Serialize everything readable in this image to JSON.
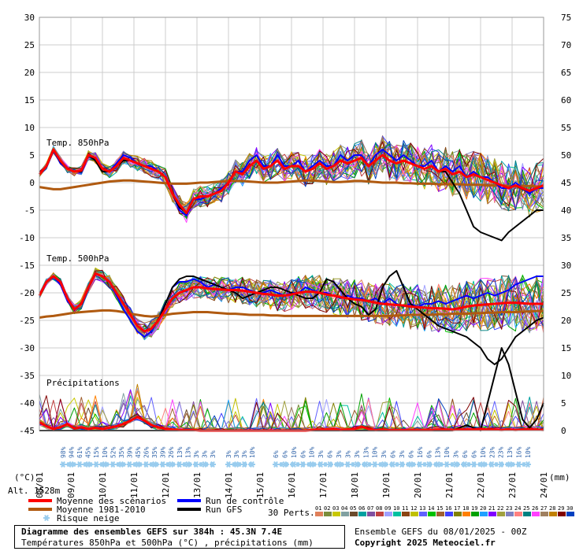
{
  "chart_data": {
    "type": "line",
    "left_axis_ticks": [
      30,
      25,
      20,
      15,
      10,
      5,
      0,
      -5,
      -10,
      -15,
      -20,
      -25,
      -30,
      -35,
      -40,
      -45
    ],
    "right_axis_ticks": [
      75,
      70,
      65,
      60,
      55,
      50,
      45,
      40,
      35,
      30,
      25,
      20,
      15,
      10,
      5,
      0
    ],
    "left_unit": "(°C)",
    "right_unit": "(mm)",
    "x_ticks": [
      "08/01",
      "09/01",
      "10/01",
      "11/01",
      "12/01",
      "13/01",
      "14/01",
      "15/01",
      "16/01",
      "17/01",
      "18/01",
      "19/01",
      "20/01",
      "21/01",
      "22/01",
      "23/01",
      "24/01"
    ],
    "panel_labels": {
      "t850": "Temp. 850hPa",
      "t500": "Temp. 500hPa",
      "precip": "Précipitations"
    },
    "x_step_hours": 6,
    "series": [
      {
        "name": "Moyenne des scénarios",
        "color": "#ff0000",
        "panel": "t850",
        "values": [
          1.5,
          3,
          6,
          4,
          2.5,
          2,
          2.2,
          5,
          4.5,
          2.5,
          2,
          3,
          4.5,
          4,
          3.5,
          3,
          2.5,
          2,
          1,
          -2,
          -4,
          -5.5,
          -3,
          -2.5,
          -2.5,
          -2,
          -1.5,
          0,
          2,
          1.5,
          3,
          4,
          2.5,
          3,
          4,
          2.5,
          3,
          3,
          2,
          2.5,
          3.5,
          2.5,
          3,
          4,
          3.5,
          4,
          4.5,
          3,
          4,
          5,
          4,
          3.5,
          4,
          3.5,
          3,
          2.5,
          3,
          2,
          2.5,
          1.5,
          2,
          1,
          1.5,
          1,
          0.5,
          0,
          -0.5,
          -1,
          -0.5,
          -1,
          -1.5,
          -1,
          -0.5
        ]
      },
      {
        "name": "Moyenne 1981-2010",
        "color": "#b05a10",
        "panel": "t850",
        "values": [
          -0.8,
          -1,
          -1.2,
          -1.2,
          -1,
          -0.8,
          -0.6,
          -0.4,
          -0.2,
          0,
          0.2,
          0.3,
          0.4,
          0.4,
          0.3,
          0.2,
          0.1,
          0,
          -0.1,
          -0.2,
          -0.2,
          -0.2,
          -0.1,
          0,
          0,
          0.1,
          0.2,
          0.3,
          0.3,
          0.3,
          0.2,
          0.1,
          0,
          0,
          0,
          0.1,
          0.2,
          0.3,
          0.4,
          0.4,
          0.3,
          0.2,
          0.1,
          0.1,
          0.2,
          0.3,
          0.3,
          0.2,
          0.1,
          0,
          0,
          0,
          -0.1,
          -0.1,
          -0.2,
          -0.2,
          -0.2,
          -0.3,
          -0.3,
          -0.3,
          -0.3,
          -0.4,
          -0.4,
          -0.4,
          -0.5,
          -0.5,
          -0.5,
          -0.6,
          -0.6,
          -0.6,
          -0.6,
          -0.7,
          -0.7
        ]
      },
      {
        "name": "Run de contrôle",
        "color": "#0000ff",
        "panel": "t850",
        "values": [
          1.5,
          3,
          6,
          3.5,
          2.5,
          2,
          2,
          5,
          4,
          2,
          2,
          3.5,
          5,
          4.5,
          3.5,
          3,
          3,
          2,
          1,
          -2,
          -5,
          -6,
          -3,
          -3,
          -2.5,
          -2,
          -1,
          0,
          2,
          2,
          4,
          5,
          3,
          3,
          5,
          3,
          3,
          4,
          2,
          3,
          4,
          3,
          3,
          5,
          4,
          5,
          5,
          3,
          5,
          6,
          5,
          4,
          5,
          4,
          3,
          3,
          4,
          2,
          3,
          2,
          3,
          1,
          2,
          1,
          1,
          0,
          -1,
          -1,
          0,
          -1,
          -2,
          -1,
          -1
        ]
      },
      {
        "name": "Run GFS",
        "color": "#000000",
        "panel": "t850",
        "values": [
          1.5,
          3,
          6,
          3.8,
          2.5,
          2,
          2,
          5,
          4,
          2,
          2,
          3,
          4,
          4,
          3.5,
          3,
          2.5,
          2,
          1,
          -2,
          -4.5,
          -5.5,
          -3,
          -2.5,
          -2.5,
          -2,
          -1.5,
          0,
          2,
          1.5,
          3,
          4,
          2.5,
          3,
          4,
          2.5,
          3,
          3,
          2,
          2.5,
          3.5,
          2.5,
          3,
          4,
          3.5,
          4,
          4.5,
          3,
          4,
          5,
          4,
          3.5,
          4,
          3.5,
          3,
          2.5,
          3,
          2,
          2,
          0,
          -2,
          -5,
          -8,
          -9,
          -9.5,
          -10,
          -10.5,
          -9,
          -8,
          -7,
          -6,
          -5,
          -5
        ]
      },
      {
        "name": "Moyenne des scénarios",
        "color": "#ff0000",
        "panel": "t500",
        "values": [
          -20.5,
          -18,
          -17,
          -18,
          -21,
          -23,
          -22,
          -19,
          -16.5,
          -17,
          -18,
          -20,
          -22,
          -24,
          -26,
          -27,
          -26.5,
          -25,
          -23,
          -21,
          -20,
          -19.5,
          -19,
          -19,
          -19.2,
          -19.3,
          -19.4,
          -19.5,
          -19.5,
          -19.6,
          -19.8,
          -20,
          -20.2,
          -20.3,
          -20.5,
          -20.5,
          -20.3,
          -20,
          -19.8,
          -19.8,
          -20,
          -20.3,
          -20.5,
          -20.8,
          -21,
          -21.2,
          -21.3,
          -21.5,
          -21.8,
          -22,
          -22.1,
          -22.2,
          -22.3,
          -22.5,
          -22.6,
          -22.7,
          -22.8,
          -22.8,
          -22.9,
          -23,
          -22.8,
          -22.5,
          -22.3,
          -22.2,
          -22.1,
          -22,
          -21.9,
          -21.8,
          -21.8,
          -21.9,
          -22,
          -22,
          -22
        ]
      },
      {
        "name": "Moyenne 1981-2010",
        "color": "#b05a10",
        "panel": "t500",
        "values": [
          -24.5,
          -24.3,
          -24.2,
          -24,
          -23.8,
          -23.6,
          -23.5,
          -23.4,
          -23.3,
          -23.2,
          -23.2,
          -23.3,
          -23.5,
          -23.8,
          -24,
          -24.2,
          -24.3,
          -24.2,
          -24,
          -23.8,
          -23.7,
          -23.6,
          -23.5,
          -23.5,
          -23.5,
          -23.6,
          -23.7,
          -23.8,
          -23.8,
          -23.9,
          -24,
          -24,
          -24,
          -24.1,
          -24.1,
          -24.2,
          -24.2,
          -24.2,
          -24.2,
          -24.2,
          -24.2,
          -24.2,
          -24.2,
          -24.2,
          -24.2,
          -24.2,
          -24.2,
          -24.2,
          -24.2,
          -24.2,
          -24.2,
          -24.1,
          -24.1,
          -24,
          -24,
          -24,
          -24,
          -23.9,
          -23.9,
          -23.8,
          -23.8,
          -23.8,
          -23.7,
          -23.7,
          -23.6,
          -23.6,
          -23.5,
          -23.5,
          -23.5,
          -23.4,
          -23.4,
          -23.3,
          -23.3
        ]
      },
      {
        "name": "Run de contrôle",
        "color": "#0000ff",
        "panel": "t500",
        "values": [
          -20.5,
          -18,
          -17,
          -18.5,
          -21.5,
          -23,
          -22,
          -19,
          -16.5,
          -17,
          -18,
          -20.5,
          -23,
          -25,
          -27,
          -28,
          -27,
          -25,
          -22,
          -19,
          -18,
          -18,
          -17.5,
          -18,
          -19,
          -18.5,
          -19,
          -19.5,
          -19,
          -19,
          -19.5,
          -20,
          -20,
          -19.5,
          -20,
          -20.5,
          -20,
          -20,
          -19,
          -19.5,
          -20,
          -20,
          -20.5,
          -21,
          -20.5,
          -21,
          -21,
          -21.5,
          -21,
          -22,
          -21,
          -22,
          -22.5,
          -22,
          -22.5,
          -22,
          -22,
          -21.5,
          -22,
          -21.5,
          -21,
          -20.5,
          -21,
          -20.5,
          -20,
          -20.5,
          -20,
          -19.5,
          -18.5,
          -18,
          -17.5,
          -17,
          -17
        ]
      },
      {
        "name": "Run GFS",
        "color": "#000000",
        "panel": "t500",
        "values": [
          -20.5,
          -18,
          -17,
          -18,
          -21,
          -23,
          -22,
          -19,
          -16.5,
          -17,
          -18,
          -20,
          -22,
          -24,
          -26,
          -27,
          -26.5,
          -25,
          -22,
          -19,
          -17.5,
          -17,
          -17,
          -17.5,
          -18,
          -18.5,
          -19,
          -19.5,
          -20,
          -21,
          -20.5,
          -20,
          -19.5,
          -19,
          -19,
          -19.5,
          -20,
          -20.5,
          -21,
          -21,
          -20,
          -17.5,
          -18,
          -19.5,
          -21,
          -22,
          -22.5,
          -24,
          -23,
          -19,
          -17,
          -16,
          -19,
          -22,
          -23,
          -24,
          -25,
          -26,
          -26.5,
          -27,
          -27.5,
          -28,
          -29,
          -30,
          -32,
          -33,
          -32,
          -30,
          -28,
          -27,
          -26,
          -25,
          -24.5
        ]
      }
    ],
    "precip_series": [
      {
        "name": "Moyenne des scénarios",
        "color": "#ff0000",
        "values_mm": [
          1.5,
          0.8,
          0.3,
          0.6,
          1.2,
          0.4,
          0.6,
          0.3,
          0.5,
          0.3,
          0.5,
          0.8,
          1.2,
          1.8,
          2.5,
          1.8,
          1,
          0.6,
          0.3,
          0.2,
          0.1,
          0.1,
          0.1,
          0,
          0,
          0,
          0,
          0,
          0,
          0,
          0,
          0,
          0,
          0,
          0,
          0,
          0,
          0,
          0,
          0.1,
          0.2,
          0.2,
          0.3,
          0.1,
          0.2,
          0.3,
          0.7,
          0.3,
          0.1,
          0.2,
          0.1,
          0.1,
          0.1,
          0.1,
          0.1,
          0.1,
          0.1,
          0.2,
          0.2,
          0.1,
          0.2,
          0.2,
          0.2,
          0.3,
          0.2,
          0.2,
          0.1,
          0.2,
          0.1,
          0.2,
          0.2,
          0.2,
          0.1
        ]
      },
      {
        "name": "Run GFS",
        "color": "#000000",
        "values_mm": [
          0,
          0,
          0,
          0,
          0,
          0,
          0,
          0,
          0,
          0,
          0,
          0,
          0,
          0,
          0,
          0,
          0,
          0,
          0,
          0,
          0,
          0,
          0,
          0,
          0,
          0,
          0,
          0,
          0,
          0,
          0,
          0,
          0,
          0,
          0,
          0,
          0,
          0,
          0,
          0,
          0,
          0,
          0,
          0,
          0,
          0,
          0,
          0,
          0,
          0,
          0,
          0,
          0,
          0,
          0,
          0,
          0,
          0,
          0,
          0,
          0.5,
          1,
          0.5,
          0,
          5,
          10,
          15,
          12,
          7,
          2,
          0.5,
          2,
          5
        ]
      }
    ],
    "snow_risk": {
      "segments": [
        {
          "start_day": 0.75,
          "end_day": 5.5,
          "labels": [
            "98%",
            "94%",
            "61%",
            "45%",
            "15%",
            "10%",
            "52%",
            "35%",
            "39%",
            "45%",
            "26%",
            "35%",
            "39%",
            "26%",
            "13%",
            "13%",
            "3%",
            "3%",
            "3%"
          ]
        },
        {
          "start_day": 6.0,
          "end_day": 6.75,
          "labels": [
            "3%",
            "3%",
            "3%",
            "10%"
          ]
        },
        {
          "start_day": 7.5,
          "end_day": 15.5,
          "labels": [
            "6%",
            "6%",
            "10%",
            "6%",
            "10%",
            "3%",
            "6%",
            "3%",
            "3%",
            "3%",
            "13%",
            "10%",
            "3%",
            "6%",
            "3%",
            "6%",
            "16%",
            "6%",
            "13%",
            "10%",
            "3%",
            "6%",
            "6%",
            "10%",
            "23%",
            "23%",
            "13%",
            "16%",
            "10%"
          ]
        }
      ]
    },
    "alt_label": "Alt. 1528m",
    "perts_label": "30 Perts.",
    "member_codes": [
      "01",
      "02",
      "03",
      "04",
      "05",
      "06",
      "07",
      "08",
      "09",
      "10",
      "11",
      "12",
      "13",
      "14",
      "15",
      "16",
      "17",
      "18",
      "19",
      "20",
      "21",
      "22",
      "23",
      "24",
      "25",
      "26",
      "27",
      "28",
      "29",
      "30"
    ],
    "member_colors": [
      "#e0805a",
      "#7b8d3c",
      "#c8c800",
      "#80a0a0",
      "#6b4a2c",
      "#00a0a0",
      "#8050a0",
      "#c04040",
      "#a0a0ff",
      "#00c0a0",
      "#8b4513",
      "#c0c000",
      "#6060ff",
      "#00c000",
      "#a06030",
      "#4040ff",
      "#808000",
      "#ff8000",
      "#00a000",
      "#20a0ff",
      "#8000ff",
      "#a0a040",
      "#8080c0",
      "#ff8080",
      "#008080",
      "#ff40ff",
      "#a08060",
      "#c08000",
      "#800000",
      "#0040c0"
    ],
    "legend": {
      "mean": "Moyenne des scénarios",
      "climo": "Moyenne 1981-2010",
      "snow": "Risque neige",
      "control": "Run de contrôle",
      "gfs": "Run GFS"
    }
  },
  "footer": {
    "title": "Diagramme des ensembles GEFS sur 384h : 45.3N 7.4E",
    "subtitle": "Températures 850hPa et 500hPa (°C) , précipitations (mm)",
    "run_info": "Ensemble GEFS du 08/01/2025 - 00Z",
    "copyright": "Copyright 2025 Meteociel.fr"
  },
  "colors": {
    "mean": "#ff0000",
    "climo": "#b05a10",
    "control": "#0000ff",
    "gfs": "#000000",
    "snow": "#99ccee",
    "grid": "#cccccc"
  }
}
